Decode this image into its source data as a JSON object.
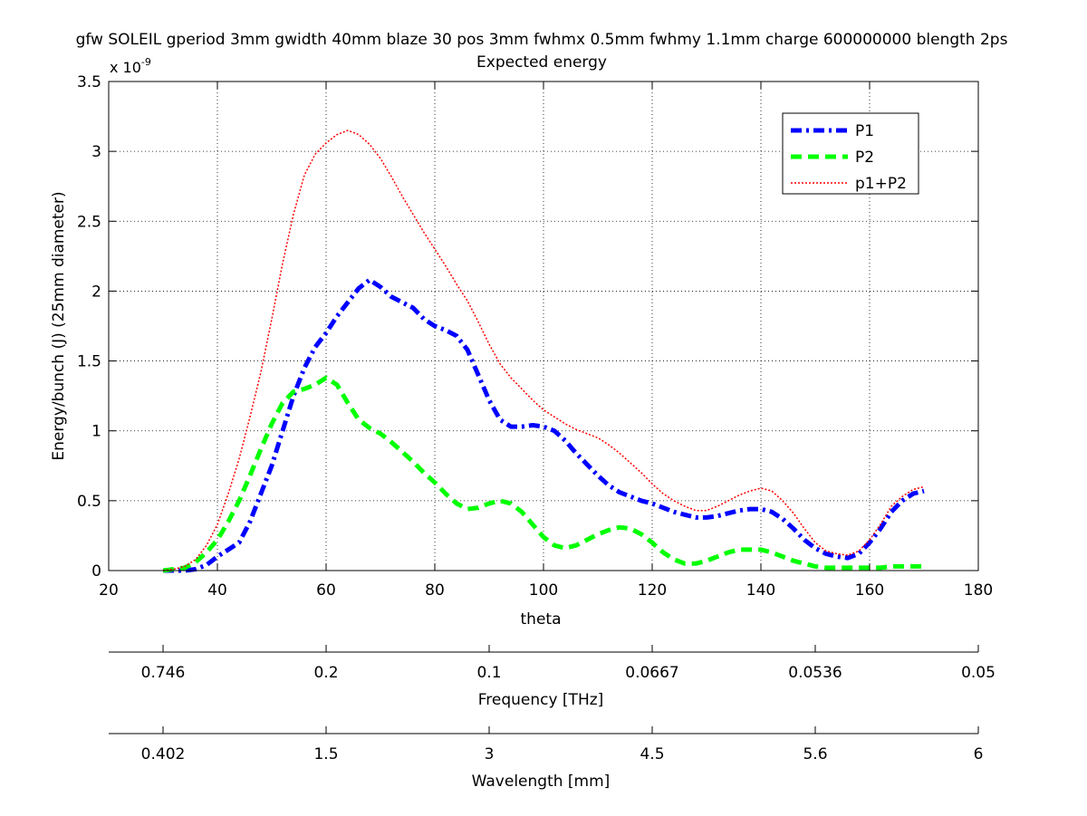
{
  "chart_data": {
    "type": "line",
    "title": "gfw SOLEIL gperiod 3mm gwidth 40mm blaze 30 pos 3mm fwhmx 0.5mm fwhmy 1.1mm charge 600000000 blength 2ps",
    "subtitle": "Expected energy",
    "xlabel": "theta",
    "ylabel": "Energy/bunch (J) (25mm diameter)",
    "y_multiplier": "x 10",
    "y_multiplier_exponent": "-9",
    "xlim": [
      20,
      180
    ],
    "ylim": [
      0,
      3.5
    ],
    "x_ticks": [
      20,
      40,
      60,
      80,
      100,
      120,
      140,
      160,
      180
    ],
    "y_ticks": [
      0,
      0.5,
      1,
      1.5,
      2,
      2.5,
      3,
      3.5
    ],
    "y_tick_labels": [
      "0",
      "0.5",
      "1",
      "1.5",
      "2",
      "2.5",
      "3",
      "3.5"
    ],
    "grid": true,
    "legend_position": "top-right",
    "series": [
      {
        "name": "P1",
        "color": "#0000ff",
        "style": "dashdot",
        "x": [
          30,
          32,
          34,
          36,
          38,
          40,
          42,
          44,
          46,
          48,
          50,
          52,
          54,
          56,
          58,
          60,
          62,
          64,
          66,
          68,
          70,
          72,
          74,
          76,
          78,
          80,
          82,
          84,
          86,
          88,
          90,
          92,
          94,
          96,
          98,
          100,
          102,
          104,
          106,
          108,
          110,
          112,
          114,
          116,
          118,
          120,
          122,
          124,
          126,
          128,
          130,
          132,
          134,
          136,
          138,
          140,
          142,
          144,
          146,
          148,
          150,
          152,
          154,
          156,
          158,
          160,
          162,
          164,
          166,
          168,
          170
        ],
        "y": [
          0,
          0,
          0,
          0.01,
          0.04,
          0.1,
          0.15,
          0.2,
          0.35,
          0.55,
          0.75,
          1.0,
          1.25,
          1.45,
          1.6,
          1.7,
          1.82,
          1.92,
          2.02,
          2.08,
          2.03,
          1.96,
          1.92,
          1.88,
          1.8,
          1.75,
          1.72,
          1.68,
          1.58,
          1.4,
          1.22,
          1.08,
          1.03,
          1.03,
          1.04,
          1.03,
          1.0,
          0.93,
          0.84,
          0.76,
          0.68,
          0.61,
          0.56,
          0.53,
          0.5,
          0.48,
          0.45,
          0.42,
          0.4,
          0.38,
          0.38,
          0.39,
          0.41,
          0.43,
          0.44,
          0.44,
          0.42,
          0.37,
          0.3,
          0.22,
          0.16,
          0.12,
          0.1,
          0.09,
          0.12,
          0.2,
          0.3,
          0.42,
          0.5,
          0.55,
          0.57
        ]
      },
      {
        "name": "P2",
        "color": "#00ff00",
        "style": "dashed",
        "x": [
          30,
          32,
          34,
          36,
          38,
          40,
          42,
          44,
          46,
          48,
          50,
          52,
          54,
          56,
          58,
          60,
          62,
          64,
          66,
          68,
          70,
          72,
          74,
          76,
          78,
          80,
          82,
          84,
          86,
          88,
          90,
          92,
          94,
          96,
          98,
          100,
          102,
          104,
          106,
          108,
          110,
          112,
          114,
          116,
          118,
          120,
          122,
          124,
          126,
          128,
          130,
          132,
          134,
          136,
          138,
          140,
          142,
          144,
          146,
          148,
          150,
          152,
          154,
          156,
          158,
          160,
          162,
          164,
          166,
          168,
          170
        ],
        "y": [
          0,
          0.01,
          0.02,
          0.06,
          0.13,
          0.22,
          0.35,
          0.5,
          0.68,
          0.87,
          1.05,
          1.2,
          1.28,
          1.3,
          1.33,
          1.38,
          1.33,
          1.2,
          1.08,
          1.02,
          0.98,
          0.92,
          0.85,
          0.78,
          0.7,
          0.63,
          0.55,
          0.48,
          0.44,
          0.45,
          0.48,
          0.5,
          0.48,
          0.42,
          0.33,
          0.24,
          0.18,
          0.16,
          0.18,
          0.22,
          0.26,
          0.29,
          0.31,
          0.3,
          0.26,
          0.2,
          0.13,
          0.08,
          0.05,
          0.05,
          0.07,
          0.1,
          0.13,
          0.15,
          0.15,
          0.15,
          0.13,
          0.1,
          0.07,
          0.05,
          0.03,
          0.02,
          0.02,
          0.02,
          0.02,
          0.02,
          0.02,
          0.03,
          0.03,
          0.03,
          0.03
        ]
      },
      {
        "name": "p1+P2",
        "color": "#ff0000",
        "style": "dotted",
        "x": [
          30,
          32,
          34,
          36,
          38,
          40,
          42,
          44,
          46,
          48,
          50,
          52,
          54,
          56,
          58,
          60,
          62,
          64,
          66,
          68,
          70,
          72,
          74,
          76,
          78,
          80,
          82,
          84,
          86,
          88,
          90,
          92,
          94,
          96,
          98,
          100,
          102,
          104,
          106,
          108,
          110,
          112,
          114,
          116,
          118,
          120,
          122,
          124,
          126,
          128,
          130,
          132,
          134,
          136,
          138,
          140,
          142,
          144,
          146,
          148,
          150,
          152,
          154,
          156,
          158,
          160,
          162,
          164,
          166,
          168,
          170
        ],
        "y": [
          0,
          0.01,
          0.03,
          0.08,
          0.18,
          0.33,
          0.55,
          0.8,
          1.1,
          1.42,
          1.8,
          2.2,
          2.55,
          2.83,
          2.98,
          3.06,
          3.12,
          3.15,
          3.12,
          3.05,
          2.95,
          2.82,
          2.68,
          2.55,
          2.42,
          2.3,
          2.18,
          2.05,
          1.93,
          1.78,
          1.62,
          1.48,
          1.38,
          1.3,
          1.22,
          1.15,
          1.1,
          1.05,
          1.01,
          0.98,
          0.95,
          0.9,
          0.84,
          0.77,
          0.7,
          0.62,
          0.55,
          0.5,
          0.46,
          0.43,
          0.43,
          0.46,
          0.5,
          0.54,
          0.57,
          0.59,
          0.57,
          0.5,
          0.41,
          0.3,
          0.2,
          0.14,
          0.12,
          0.11,
          0.14,
          0.22,
          0.33,
          0.46,
          0.53,
          0.58,
          0.6
        ]
      }
    ],
    "secondary_axes": [
      {
        "label": "Frequency [THz]",
        "tick_positions_theta": [
          30,
          60,
          90,
          120,
          150,
          180
        ],
        "tick_labels": [
          "0.746",
          "0.2",
          "0.1",
          "0.0667",
          "0.0536",
          "0.05"
        ]
      },
      {
        "label": "Wavelength [mm]",
        "tick_positions_theta": [
          30,
          60,
          90,
          120,
          150,
          180
        ],
        "tick_labels": [
          "0.402",
          "1.5",
          "3",
          "4.5",
          "5.6",
          "6"
        ]
      }
    ]
  }
}
